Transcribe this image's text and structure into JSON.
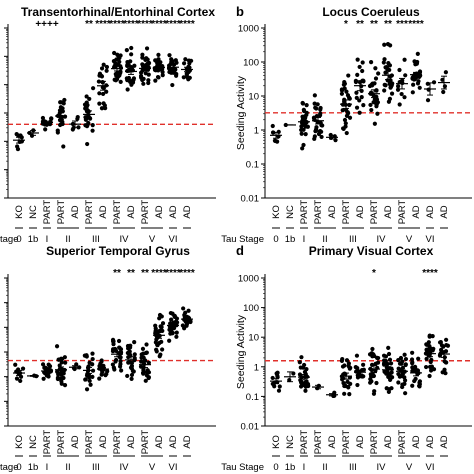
{
  "figure": {
    "x_categories": [
      "KO",
      "NC",
      "PART",
      "PART",
      "AD",
      "PART",
      "AD",
      "PART",
      "AD",
      "PART",
      "AD",
      "AD",
      "AD"
    ],
    "stage_axis_title": "Tau Stage",
    "stage_axis_title_cut": "tage",
    "stage_labels": [
      "0",
      "1b",
      "I",
      "II",
      "III",
      "IV",
      "V",
      "VI"
    ],
    "y_scale": "log",
    "colors": {
      "points": "#000000",
      "threshold_line": "#e0302b",
      "axis": "#000000"
    }
  },
  "chart_data": [
    {
      "letter": "",
      "title": "Transentorhinal/Entorhinal Cortex",
      "type": "scatter",
      "ylabel": "",
      "threshold": 4,
      "stars": [
        "",
        "",
        "++++",
        "",
        "",
        "**",
        "****",
        "****",
        "****",
        "****",
        "****",
        "****",
        "****"
      ],
      "y_ticks_shown": [],
      "ylim": [
        0.01,
        10000
      ],
      "medians": [
        0.9,
        1.5,
        4.5,
        7,
        5,
        8,
        90,
        300,
        350,
        380,
        380,
        400,
        420
      ],
      "spread": [
        0.35,
        0.4,
        0.2,
        0.55,
        0.3,
        0.6,
        0.75,
        0.5,
        0.45,
        0.4,
        0.35,
        0.3,
        0.3
      ],
      "counts": [
        8,
        3,
        14,
        24,
        6,
        26,
        22,
        30,
        28,
        30,
        30,
        26,
        18
      ]
    },
    {
      "letter": "b",
      "title": "Locus Coeruleus",
      "type": "scatter",
      "ylabel": "Seeding Activity",
      "threshold": 3.2,
      "stars": [
        "",
        "",
        "",
        "",
        "",
        "*",
        "**",
        "**",
        "**",
        "***",
        "****",
        "",
        ""
      ],
      "y_ticks_shown": [
        "1000",
        "100",
        "10",
        "1",
        "0.1",
        "0.01"
      ],
      "ylim": [
        0.01,
        1000
      ],
      "medians": [
        0.8,
        1.0,
        1.6,
        2.0,
        0.8,
        5,
        20,
        12,
        40,
        25,
        35,
        10,
        10
      ],
      "spread": [
        0.35,
        0.3,
        0.4,
        0.6,
        0.2,
        0.6,
        0.6,
        0.55,
        0.6,
        0.5,
        0.55,
        0.4,
        0.4
      ],
      "counts": [
        8,
        1,
        30,
        28,
        4,
        30,
        20,
        28,
        28,
        12,
        30,
        4,
        4
      ]
    },
    {
      "letter": "",
      "title": "Superior Temporal Gyrus",
      "type": "scatter",
      "ylabel": "",
      "threshold": 4.5,
      "stars": [
        "",
        "",
        "",
        "",
        "",
        "",
        "",
        "**",
        "**",
        "**",
        "****",
        "****",
        "****"
      ],
      "y_ticks_shown": [],
      "ylim": [
        0.01,
        10000
      ],
      "medians": [
        1.5,
        1.0,
        1.5,
        1.5,
        2.0,
        2.0,
        1.8,
        10,
        6,
        3,
        40,
        100,
        220
      ],
      "spread": [
        0.25,
        0.05,
        0.25,
        0.55,
        0.2,
        0.55,
        0.3,
        0.6,
        0.7,
        0.5,
        0.55,
        0.5,
        0.3
      ],
      "counts": [
        9,
        2,
        24,
        26,
        4,
        24,
        18,
        28,
        24,
        26,
        30,
        26,
        20
      ]
    },
    {
      "letter": "d",
      "title": "Primary Visual Cortex",
      "type": "scatter",
      "ylabel": "Seeding Activity",
      "threshold": 1.6,
      "stars": [
        "",
        "",
        "",
        "",
        "",
        "",
        "",
        "*",
        "",
        "",
        "",
        "****",
        ""
      ],
      "y_ticks_shown": [
        "1000",
        "100",
        "10",
        "1",
        "0.1",
        "0.01"
      ],
      "ylim": [
        0.01,
        1000
      ],
      "medians": [
        0.4,
        0.7,
        0.5,
        0.15,
        0.12,
        0.5,
        0.6,
        1.0,
        1.0,
        0.6,
        0.6,
        2.5,
        2.5
      ],
      "spread": [
        0.35,
        0.2,
        0.3,
        0.2,
        0.1,
        0.35,
        0.3,
        0.55,
        0.6,
        0.5,
        0.45,
        0.5,
        0.5
      ],
      "counts": [
        12,
        2,
        24,
        2,
        4,
        26,
        20,
        26,
        28,
        26,
        24,
        28,
        20
      ]
    }
  ]
}
